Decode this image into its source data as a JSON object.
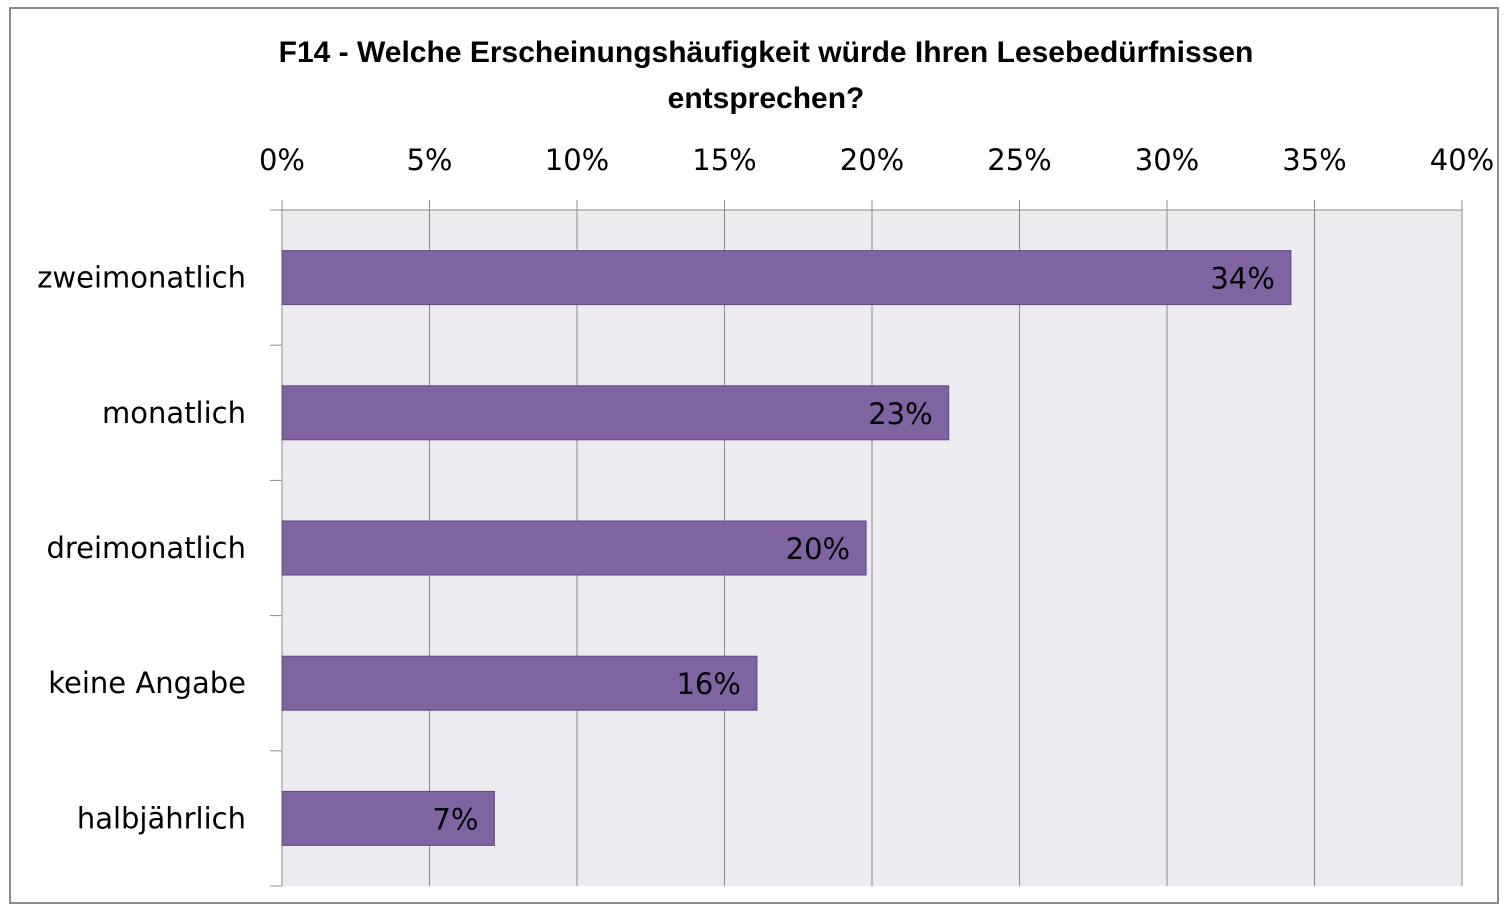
{
  "chart_data": {
    "type": "bar",
    "orientation": "horizontal",
    "title": "F14 - Welche Erscheinungshäufigkeit würde Ihren Lesebedürfnissen entsprechen?",
    "categories": [
      "zweimonatlich",
      "monatlich",
      "dreimonatlich",
      "keine Angabe",
      "halbjährlich"
    ],
    "values": [
      34.2,
      22.6,
      19.8,
      16.1,
      7.2
    ],
    "value_labels": [
      "34%",
      "23%",
      "20%",
      "16%",
      "7%"
    ],
    "color": "#8064a2",
    "xlim": [
      0,
      40
    ],
    "xticks": [
      {
        "value": 0,
        "label": "0%"
      },
      {
        "value": 5,
        "label": "5%"
      },
      {
        "value": 10,
        "label": "10%"
      },
      {
        "value": 15,
        "label": "15%"
      },
      {
        "value": 20,
        "label": "20%"
      },
      {
        "value": 25,
        "label": "25%"
      },
      {
        "value": 30,
        "label": "30%"
      },
      {
        "value": 35,
        "label": "35%"
      },
      {
        "value": 40,
        "label": "40%"
      }
    ],
    "grid": true
  }
}
